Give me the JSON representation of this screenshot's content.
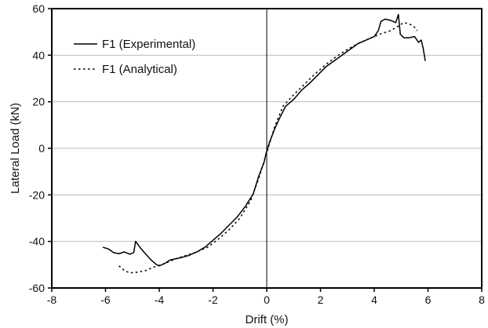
{
  "chart_data": {
    "type": "line",
    "xlabel": "Drift (%)",
    "ylabel": "Lateral Load (kN)",
    "xlim": [
      -8,
      8
    ],
    "ylim": [
      -60,
      60
    ],
    "xticks": [
      -8,
      -6,
      -4,
      -2,
      0,
      2,
      4,
      6,
      8
    ],
    "yticks": [
      -60,
      -40,
      -20,
      0,
      20,
      40,
      60
    ],
    "grid": "horizontal",
    "legend_position": "top-left",
    "series": [
      {
        "name": "F1 (Experimental)",
        "style": "solid",
        "color": "#000000",
        "points": [
          [
            -6.1,
            -42.5
          ],
          [
            -5.9,
            -43.2
          ],
          [
            -5.7,
            -44.8
          ],
          [
            -5.5,
            -45.3
          ],
          [
            -5.3,
            -44.5
          ],
          [
            -5.1,
            -45.5
          ],
          [
            -4.95,
            -44.8
          ],
          [
            -4.88,
            -40.0
          ],
          [
            -4.7,
            -42.8
          ],
          [
            -4.5,
            -45.5
          ],
          [
            -4.3,
            -48.0
          ],
          [
            -4.1,
            -50.0
          ],
          [
            -4.0,
            -50.5
          ],
          [
            -3.8,
            -49.5
          ],
          [
            -3.6,
            -48.0
          ],
          [
            -3.4,
            -47.5
          ],
          [
            -3.2,
            -47.0
          ],
          [
            -2.9,
            -46.0
          ],
          [
            -2.6,
            -44.5
          ],
          [
            -2.3,
            -42.5
          ],
          [
            -2.0,
            -39.5
          ],
          [
            -1.7,
            -36.5
          ],
          [
            -1.4,
            -33.0
          ],
          [
            -1.1,
            -29.5
          ],
          [
            -0.8,
            -25.0
          ],
          [
            -0.5,
            -19.5
          ],
          [
            -0.3,
            -12.0
          ],
          [
            -0.1,
            -6.0
          ],
          [
            0.0,
            -1.0
          ],
          [
            0.1,
            2.5
          ],
          [
            0.3,
            8.5
          ],
          [
            0.5,
            13.5
          ],
          [
            0.7,
            18.0
          ],
          [
            1.0,
            21.0
          ],
          [
            1.3,
            25.0
          ],
          [
            1.6,
            28.0
          ],
          [
            1.9,
            31.5
          ],
          [
            2.2,
            35.0
          ],
          [
            2.5,
            37.5
          ],
          [
            2.8,
            40.0
          ],
          [
            3.1,
            42.5
          ],
          [
            3.4,
            45.0
          ],
          [
            3.7,
            46.5
          ],
          [
            4.0,
            48.0
          ],
          [
            4.15,
            50.5
          ],
          [
            4.25,
            54.5
          ],
          [
            4.4,
            55.5
          ],
          [
            4.6,
            55.0
          ],
          [
            4.8,
            54.0
          ],
          [
            4.9,
            57.5
          ],
          [
            4.97,
            49.0
          ],
          [
            5.1,
            47.5
          ],
          [
            5.3,
            47.5
          ],
          [
            5.5,
            48.0
          ],
          [
            5.65,
            45.5
          ],
          [
            5.75,
            46.5
          ],
          [
            5.82,
            43.0
          ],
          [
            5.9,
            37.5
          ]
        ]
      },
      {
        "name": "F1 (Analytical)",
        "style": "dotted",
        "color": "#000000",
        "points": [
          [
            -5.5,
            -50.5
          ],
          [
            -5.3,
            -52.5
          ],
          [
            -5.1,
            -53.5
          ],
          [
            -4.8,
            -53.2
          ],
          [
            -4.5,
            -52.5
          ],
          [
            -4.2,
            -51.0
          ],
          [
            -3.8,
            -49.5
          ],
          [
            -3.4,
            -47.5
          ],
          [
            -3.0,
            -46.0
          ],
          [
            -2.6,
            -44.5
          ],
          [
            -2.2,
            -42.5
          ],
          [
            -1.8,
            -39.0
          ],
          [
            -1.4,
            -35.0
          ],
          [
            -1.0,
            -30.0
          ],
          [
            -0.6,
            -22.5
          ],
          [
            -0.3,
            -13.0
          ],
          [
            0.0,
            -2.0
          ],
          [
            0.3,
            9.5
          ],
          [
            0.6,
            18.0
          ],
          [
            1.0,
            23.0
          ],
          [
            1.4,
            27.5
          ],
          [
            1.8,
            32.0
          ],
          [
            2.2,
            36.0
          ],
          [
            2.6,
            39.5
          ],
          [
            3.0,
            42.5
          ],
          [
            3.4,
            45.0
          ],
          [
            3.8,
            47.0
          ],
          [
            4.2,
            49.0
          ],
          [
            4.6,
            50.5
          ],
          [
            4.9,
            52.5
          ],
          [
            5.1,
            54.0
          ],
          [
            5.3,
            53.5
          ],
          [
            5.5,
            52.0
          ],
          [
            5.6,
            50.5
          ]
        ]
      }
    ]
  }
}
